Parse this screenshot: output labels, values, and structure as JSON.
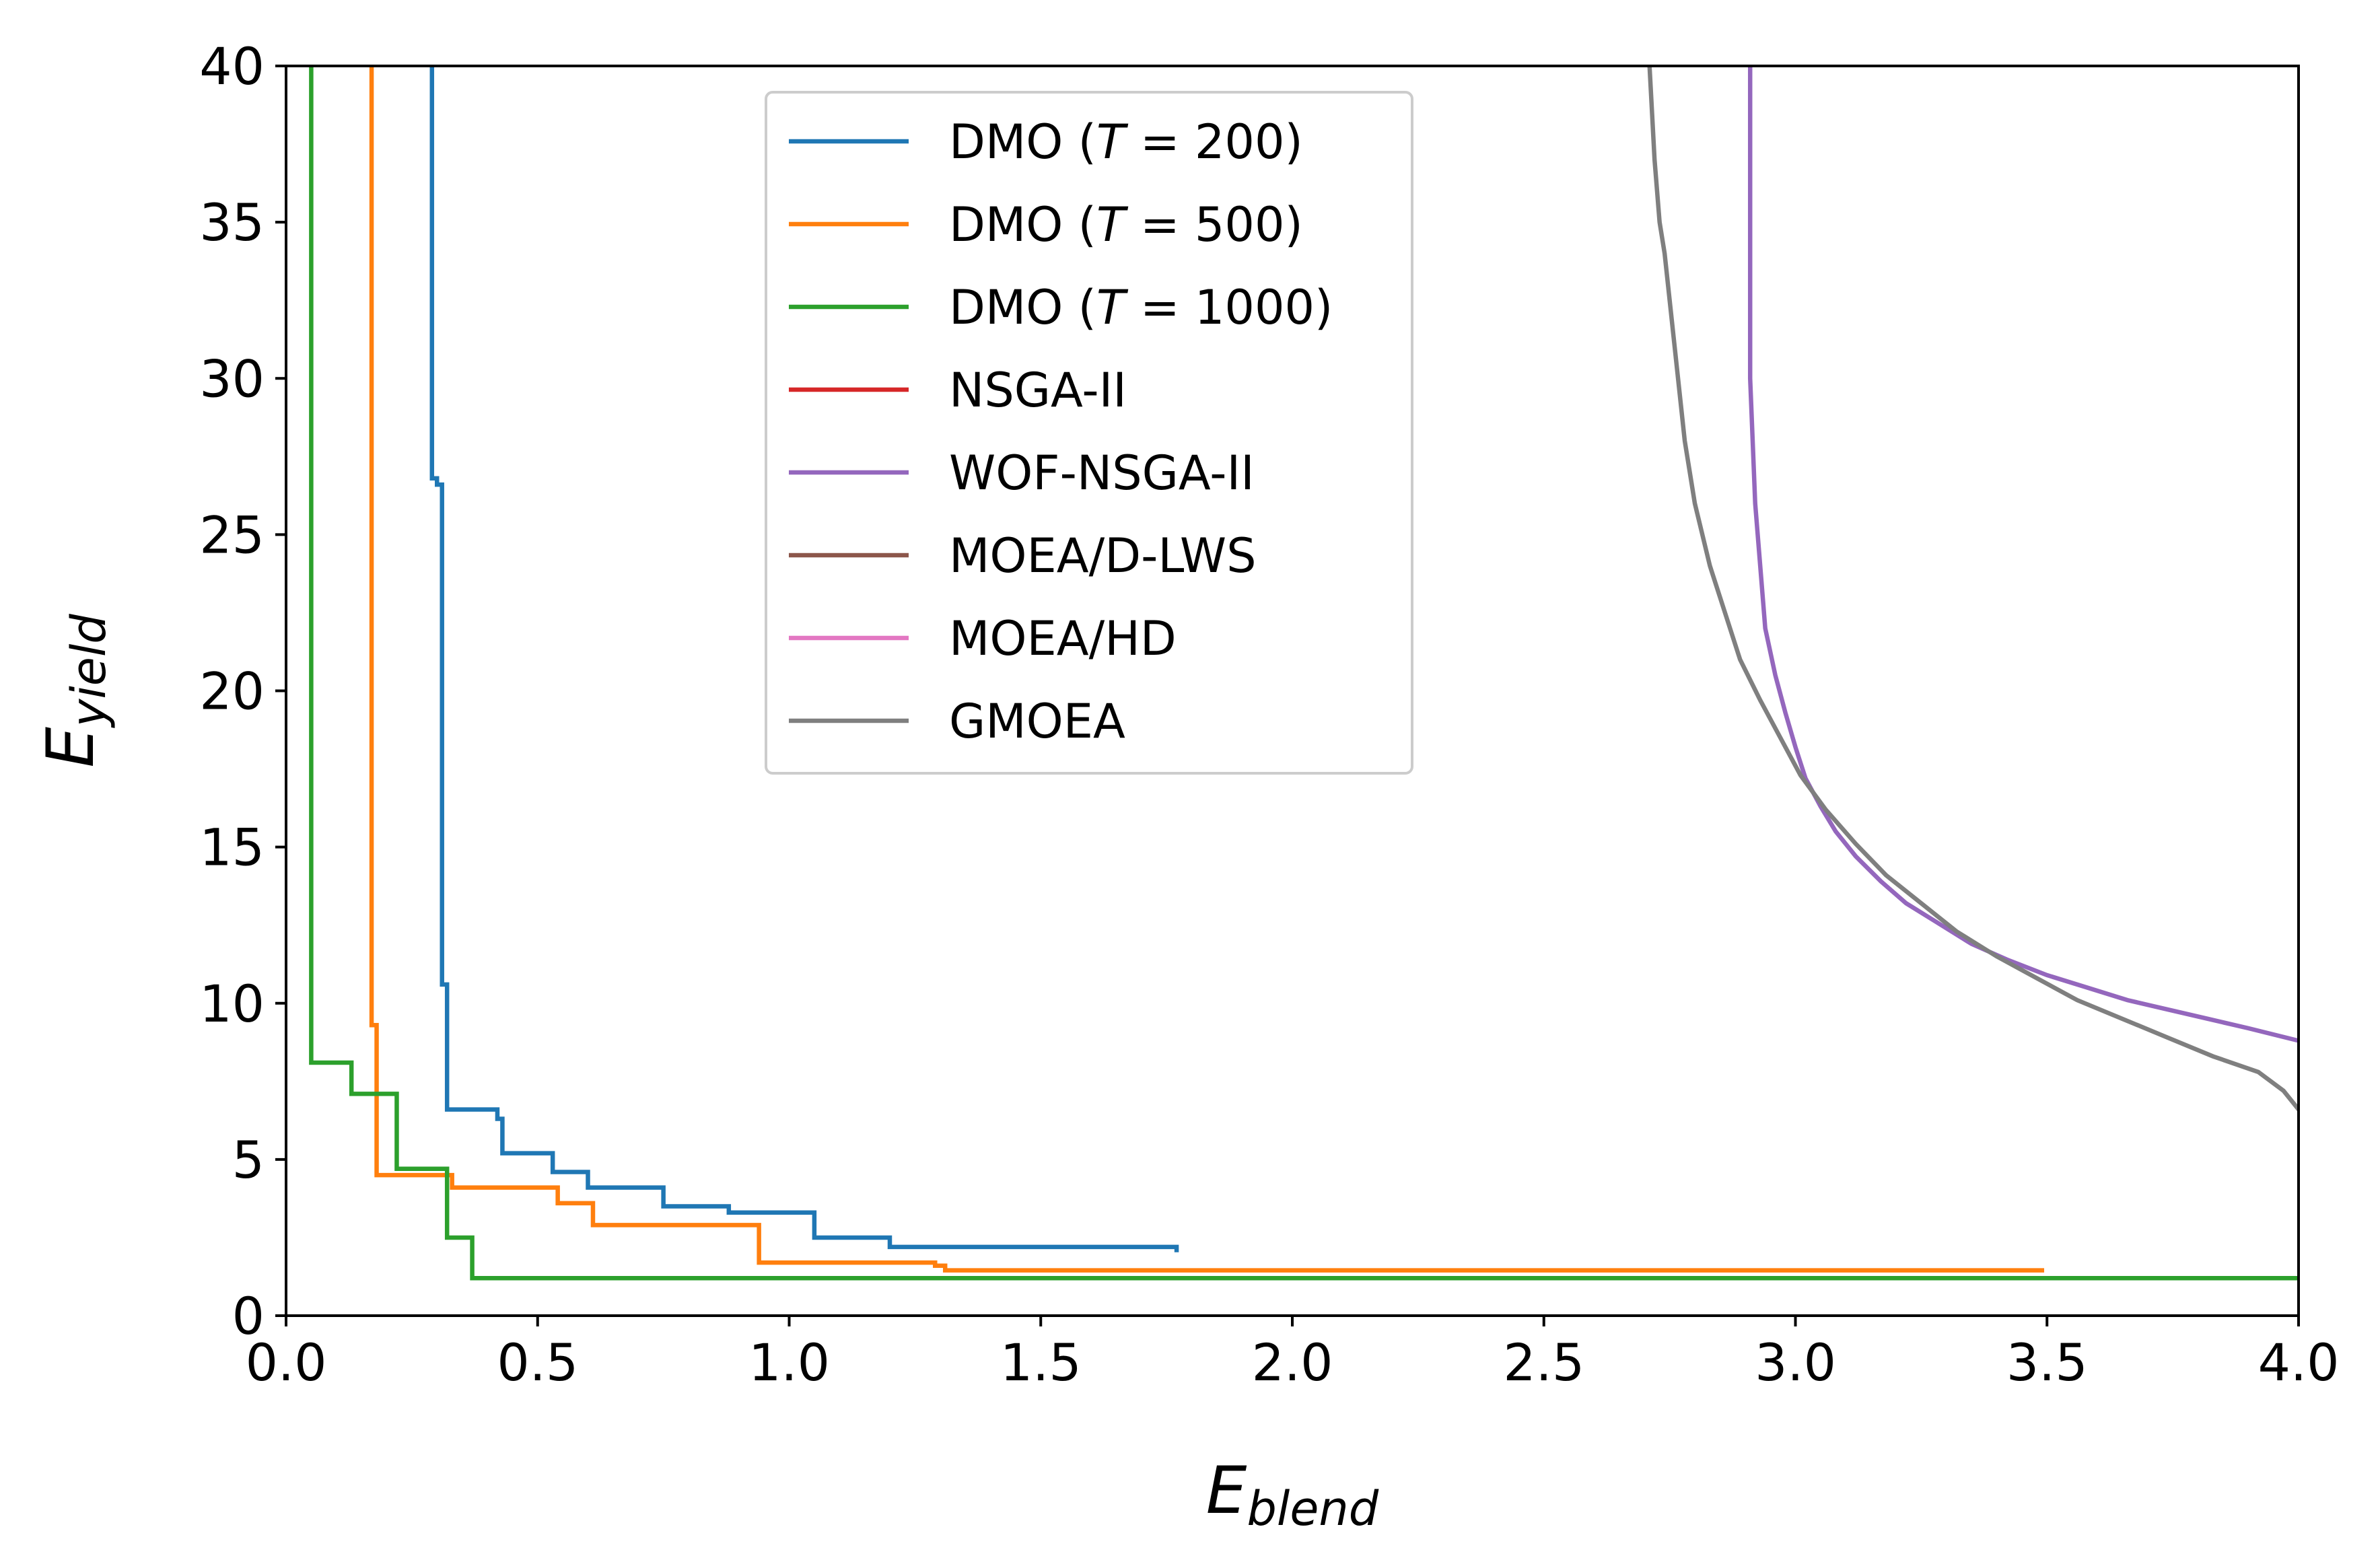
{
  "chart_data": {
    "type": "line",
    "xlabel": {
      "main": "E",
      "sub": "blend"
    },
    "ylabel": {
      "main": "E",
      "sub": "yield"
    },
    "xlim": [
      0,
      4
    ],
    "ylim": [
      0,
      40
    ],
    "xticks": [
      {
        "value": 0.0,
        "label": "0.0"
      },
      {
        "value": 0.5,
        "label": "0.5"
      },
      {
        "value": 1.0,
        "label": "1.0"
      },
      {
        "value": 1.5,
        "label": "1.5"
      },
      {
        "value": 2.0,
        "label": "2.0"
      },
      {
        "value": 2.5,
        "label": "2.5"
      },
      {
        "value": 3.0,
        "label": "3.0"
      },
      {
        "value": 3.5,
        "label": "3.5"
      },
      {
        "value": 4.0,
        "label": "4.0"
      }
    ],
    "yticks": [
      {
        "value": 0,
        "label": "0"
      },
      {
        "value": 5,
        "label": "5"
      },
      {
        "value": 10,
        "label": "10"
      },
      {
        "value": 15,
        "label": "15"
      },
      {
        "value": 20,
        "label": "20"
      },
      {
        "value": 25,
        "label": "25"
      },
      {
        "value": 30,
        "label": "30"
      },
      {
        "value": 35,
        "label": "35"
      },
      {
        "value": 40,
        "label": "40"
      }
    ],
    "grid": false,
    "legend_position": "top-center",
    "series": [
      {
        "name": "DMO (T = 200)",
        "legend": {
          "prefix": "DMO (",
          "var": "T",
          "suffix": " = 200)"
        },
        "color": "#1f77b4",
        "step": true,
        "x": [
          0.29,
          0.29,
          0.3,
          0.31,
          0.32,
          0.42,
          0.43,
          0.53,
          0.6,
          0.75,
          0.88,
          1.05,
          1.2,
          1.77
        ],
        "y": [
          40,
          26.8,
          26.6,
          10.6,
          6.6,
          6.3,
          5.2,
          4.6,
          4.1,
          3.5,
          3.3,
          2.5,
          2.2,
          2.1
        ]
      },
      {
        "name": "DMO (T = 500)",
        "legend": {
          "prefix": "DMO (",
          "var": "T",
          "suffix": " = 500)"
        },
        "color": "#ff7f0e",
        "step": true,
        "x": [
          0.17,
          0.17,
          0.18,
          0.32,
          0.33,
          0.54,
          0.61,
          0.94,
          1.29,
          1.31,
          3.49
        ],
        "y": [
          40,
          9.3,
          4.5,
          4.5,
          4.1,
          3.6,
          2.9,
          1.7,
          1.6,
          1.45,
          1.45
        ]
      },
      {
        "name": "DMO (T = 1000)",
        "legend": {
          "prefix": "DMO (",
          "var": "T",
          "suffix": " = 1000)"
        },
        "color": "#2ca02c",
        "step": true,
        "x": [
          0.05,
          0.05,
          0.13,
          0.22,
          0.32,
          0.37,
          4.0
        ],
        "y": [
          40,
          8.1,
          7.1,
          4.7,
          2.5,
          1.2,
          1.2
        ]
      },
      {
        "name": "NSGA-II",
        "legend": {
          "prefix": "NSGA-II",
          "var": "",
          "suffix": ""
        },
        "color": "#d62728",
        "step": false,
        "x": [],
        "y": []
      },
      {
        "name": "WOF-NSGA-II",
        "legend": {
          "prefix": "WOF-NSGA-II",
          "var": "",
          "suffix": ""
        },
        "color": "#9467bd",
        "step": false,
        "x": [
          2.91,
          2.91,
          2.92,
          2.93,
          2.94,
          2.96,
          2.98,
          3.0,
          3.02,
          3.05,
          3.08,
          3.12,
          3.17,
          3.22,
          3.28,
          3.35,
          3.42,
          3.5,
          3.58,
          3.66,
          3.74,
          3.82,
          3.9,
          4.0
        ],
        "y": [
          40,
          30,
          26,
          24,
          22,
          20.5,
          19.3,
          18.2,
          17.2,
          16.3,
          15.5,
          14.7,
          13.9,
          13.2,
          12.6,
          11.9,
          11.4,
          10.9,
          10.5,
          10.1,
          9.8,
          9.5,
          9.2,
          8.8
        ]
      },
      {
        "name": "MOEA/D-LWS",
        "legend": {
          "prefix": "MOEA/D-LWS",
          "var": "",
          "suffix": ""
        },
        "color": "#8c564b",
        "step": false,
        "x": [],
        "y": []
      },
      {
        "name": "MOEA/HD",
        "legend": {
          "prefix": "MOEA/HD",
          "var": "",
          "suffix": ""
        },
        "color": "#e377c2",
        "step": false,
        "x": [],
        "y": []
      },
      {
        "name": "GMOEA",
        "legend": {
          "prefix": "GMOEA",
          "var": "",
          "suffix": ""
        },
        "color": "#7f7f7f",
        "step": false,
        "x": [
          2.71,
          2.72,
          2.73,
          2.74,
          2.76,
          2.78,
          2.8,
          2.83,
          2.86,
          2.89,
          2.93,
          2.97,
          3.01,
          3.06,
          3.12,
          3.18,
          3.25,
          3.32,
          3.4,
          3.48,
          3.56,
          3.65,
          3.74,
          3.83,
          3.92,
          3.97,
          4.0
        ],
        "y": [
          40,
          37,
          35,
          34,
          31,
          28,
          26,
          24,
          22.5,
          21,
          19.7,
          18.5,
          17.3,
          16.2,
          15.1,
          14.1,
          13.2,
          12.3,
          11.5,
          10.8,
          10.1,
          9.5,
          8.9,
          8.3,
          7.8,
          7.2,
          6.6
        ]
      }
    ]
  }
}
